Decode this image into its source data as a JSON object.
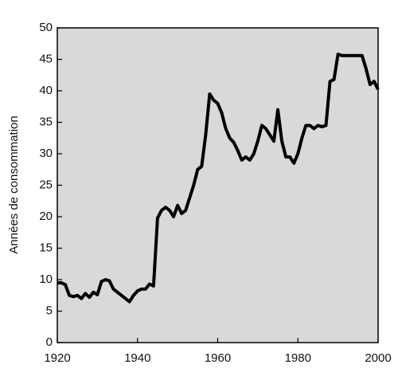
{
  "chart_data": {
    "type": "line",
    "y_label": "Années de consommation",
    "x": [
      1920,
      1921,
      1922,
      1923,
      1924,
      1925,
      1926,
      1927,
      1928,
      1929,
      1930,
      1931,
      1932,
      1933,
      1934,
      1935,
      1936,
      1937,
      1938,
      1939,
      1940,
      1941,
      1942,
      1943,
      1944,
      1945,
      1946,
      1947,
      1948,
      1949,
      1950,
      1951,
      1952,
      1953,
      1954,
      1955,
      1956,
      1957,
      1958,
      1959,
      1960,
      1961,
      1962,
      1963,
      1964,
      1965,
      1966,
      1967,
      1968,
      1969,
      1970,
      1971,
      1972,
      1973,
      1974,
      1975,
      1976,
      1977,
      1978,
      1979,
      1980,
      1981,
      1982,
      1983,
      1984,
      1985,
      1986,
      1987,
      1988,
      1989,
      1990,
      1991,
      1992,
      1993,
      1994,
      1995,
      1996,
      1997,
      1998,
      1999,
      2000
    ],
    "series": [
      {
        "color": "#000000",
        "values": [
          9.5,
          9.5,
          9.2,
          7.5,
          7.3,
          7.5,
          7.0,
          7.8,
          7.2,
          8.0,
          7.6,
          9.7,
          10.0,
          9.8,
          8.5,
          8.0,
          7.5,
          7.0,
          6.5,
          7.5,
          8.2,
          8.5,
          8.5,
          9.3,
          9.0,
          19.8,
          21.0,
          21.5,
          21.0,
          20.0,
          21.8,
          20.5,
          21.0,
          23.0,
          25.0,
          27.5,
          28.0,
          33.0,
          39.5,
          38.5,
          38.0,
          36.5,
          34.0,
          32.5,
          31.8,
          30.5,
          29.0,
          29.5,
          29.0,
          30.0,
          32.0,
          34.5,
          34.0,
          33.0,
          32.0,
          37.0,
          32.0,
          29.5,
          29.5,
          28.5,
          30.0,
          32.5,
          34.5,
          34.5,
          34.0,
          34.5,
          34.3,
          34.5,
          41.5,
          41.8,
          45.8,
          45.6,
          45.6,
          45.6,
          45.6,
          45.6,
          45.6,
          43.5,
          41.0,
          41.5,
          40.2
        ]
      }
    ],
    "xlim": [
      1920,
      2000
    ],
    "xticks": [
      1920,
      1940,
      1960,
      1980,
      2000
    ],
    "ylim": [
      0,
      50
    ],
    "yticks": [
      0,
      5,
      10,
      15,
      20,
      25,
      30,
      35,
      40,
      45,
      50
    ],
    "background": "#d9d9d9"
  }
}
